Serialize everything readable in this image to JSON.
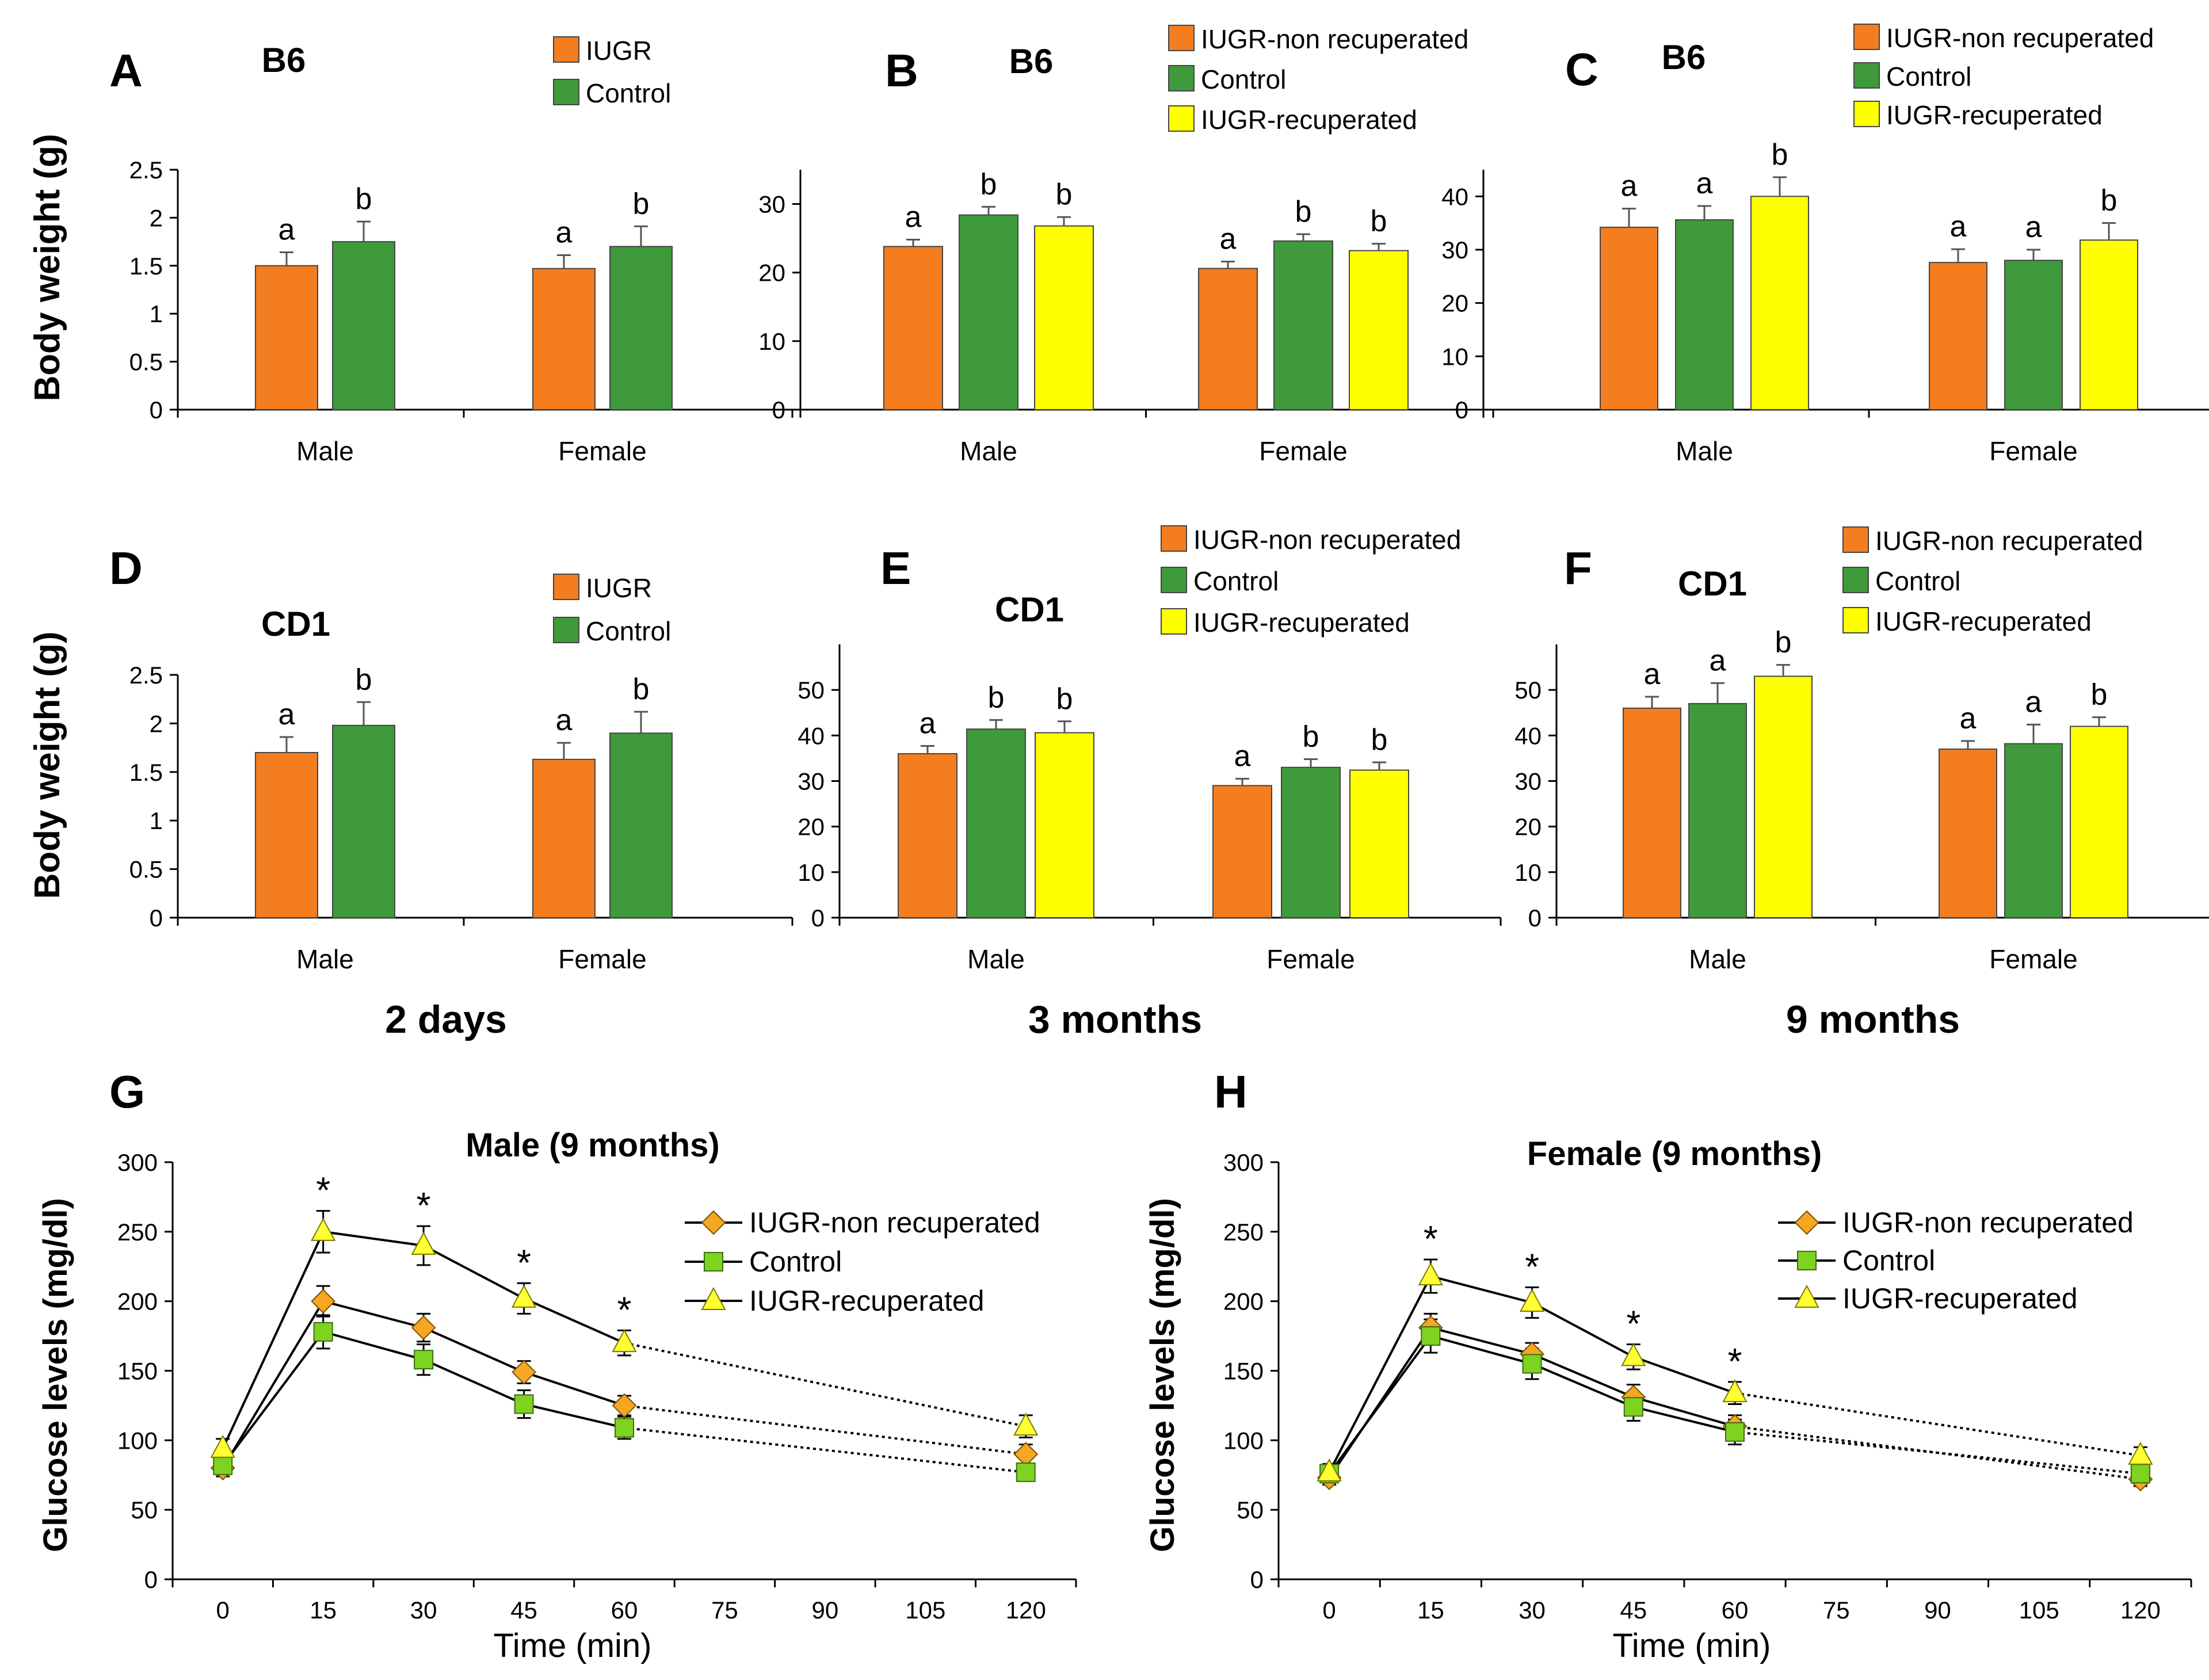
{
  "colors": {
    "IUGR": "#f47d20",
    "IUGR-non recuperated": "#f47d20",
    "Control": "#3e9a3a",
    "IUGR-recuperated": "#ffff00",
    "marker_nonrec": "#f5a623",
    "marker_control": "#7ed321",
    "marker_rec": "#ffff33"
  },
  "row_labels": {
    "body_weight_top": "Body weight (g)",
    "body_weight_bottom": "Body weight (g)",
    "glucose_left": "Glucose levels (mg/dl)",
    "glucose_right": "Glucose levels (mg/dl)"
  },
  "age_labels": [
    "2 days",
    "3 months",
    "9 months"
  ],
  "chart_data": [
    {
      "id": "A",
      "type": "bar",
      "letter": "A",
      "title": "B6",
      "categories": [
        "Male",
        "Female"
      ],
      "ylim": [
        0,
        2.5
      ],
      "yticks": [
        "0",
        "0.5",
        "1",
        "1.5",
        "2",
        "2.5"
      ],
      "ytick_values": [
        0,
        0.5,
        1,
        1.5,
        2,
        2.5
      ],
      "series": [
        {
          "name": "IUGR",
          "values": [
            1.5,
            1.47
          ],
          "errors": [
            0.14,
            0.14
          ],
          "sig": [
            "a",
            "a"
          ]
        },
        {
          "name": "Control",
          "values": [
            1.75,
            1.7
          ],
          "errors": [
            0.21,
            0.21
          ],
          "sig": [
            "b",
            "b"
          ]
        }
      ]
    },
    {
      "id": "B",
      "type": "bar",
      "letter": "B",
      "title": "B6",
      "categories": [
        "Male",
        "Female"
      ],
      "ylim": [
        0,
        35
      ],
      "yticks": [
        "0",
        "10",
        "20",
        "30"
      ],
      "ytick_values": [
        0,
        10,
        20,
        30
      ],
      "series": [
        {
          "name": "IUGR-non recuperated",
          "values": [
            23.8,
            20.6
          ],
          "errors": [
            1.0,
            1.0
          ],
          "sig": [
            "a",
            "a"
          ]
        },
        {
          "name": "Control",
          "values": [
            28.4,
            24.6
          ],
          "errors": [
            1.2,
            1.0
          ],
          "sig": [
            "b",
            "b"
          ]
        },
        {
          "name": "IUGR-recuperated",
          "values": [
            26.8,
            23.2
          ],
          "errors": [
            1.3,
            1.0
          ],
          "sig": [
            "b",
            "b"
          ]
        }
      ]
    },
    {
      "id": "C",
      "type": "bar",
      "letter": "C",
      "title": "B6",
      "categories": [
        "Male",
        "Female"
      ],
      "ylim": [
        0,
        45
      ],
      "yticks": [
        "0",
        "10",
        "20",
        "30",
        "40"
      ],
      "ytick_values": [
        0,
        10,
        20,
        30,
        40
      ],
      "series": [
        {
          "name": "IUGR-non recuperated",
          "values": [
            34.2,
            27.6
          ],
          "errors": [
            3.5,
            2.5
          ],
          "sig": [
            "a",
            "a"
          ]
        },
        {
          "name": "Control",
          "values": [
            35.6,
            28.0
          ],
          "errors": [
            2.6,
            2.0
          ],
          "sig": [
            "a",
            "a"
          ]
        },
        {
          "name": "IUGR-recuperated",
          "values": [
            40.0,
            31.8
          ],
          "errors": [
            3.6,
            3.2
          ],
          "sig": [
            "b",
            "b"
          ]
        }
      ]
    },
    {
      "id": "D",
      "type": "bar",
      "letter": "D",
      "title": "CD1",
      "categories": [
        "Male",
        "Female"
      ],
      "ylim": [
        0,
        2.5
      ],
      "yticks": [
        "0",
        "0.5",
        "1",
        "1.5",
        "2",
        "2.5"
      ],
      "ytick_values": [
        0,
        0.5,
        1,
        1.5,
        2,
        2.5
      ],
      "series": [
        {
          "name": "IUGR",
          "values": [
            1.7,
            1.63
          ],
          "errors": [
            0.16,
            0.17
          ],
          "sig": [
            "a",
            "a"
          ]
        },
        {
          "name": "Control",
          "values": [
            1.98,
            1.9
          ],
          "errors": [
            0.24,
            0.22
          ],
          "sig": [
            "b",
            "b"
          ]
        }
      ]
    },
    {
      "id": "E",
      "type": "bar",
      "letter": "E",
      "title": "CD1",
      "categories": [
        "Male",
        "Female"
      ],
      "ylim": [
        0,
        60
      ],
      "yticks": [
        "0",
        "10",
        "20",
        "30",
        "40",
        "50"
      ],
      "ytick_values": [
        0,
        10,
        20,
        30,
        40,
        50
      ],
      "series": [
        {
          "name": "IUGR-non recuperated",
          "values": [
            36.0,
            29.0
          ],
          "errors": [
            1.7,
            1.5
          ],
          "sig": [
            "a",
            "a"
          ]
        },
        {
          "name": "Control",
          "values": [
            41.4,
            33.0
          ],
          "errors": [
            2.0,
            1.8
          ],
          "sig": [
            "b",
            "b"
          ]
        },
        {
          "name": "IUGR-recuperated",
          "values": [
            40.6,
            32.4
          ],
          "errors": [
            2.5,
            1.7
          ],
          "sig": [
            "b",
            "b"
          ]
        }
      ]
    },
    {
      "id": "F",
      "type": "bar",
      "letter": "F",
      "title": "CD1",
      "categories": [
        "Male",
        "Female"
      ],
      "ylim": [
        0,
        60
      ],
      "yticks": [
        "0",
        "10",
        "20",
        "30",
        "40",
        "50"
      ],
      "ytick_values": [
        0,
        10,
        20,
        30,
        40,
        50
      ],
      "series": [
        {
          "name": "IUGR-non recuperated",
          "values": [
            46.0,
            37.0
          ],
          "errors": [
            2.5,
            1.8
          ],
          "sig": [
            "a",
            "a"
          ]
        },
        {
          "name": "Control",
          "values": [
            47.0,
            38.2
          ],
          "errors": [
            4.5,
            4.2
          ],
          "sig": [
            "a",
            "a"
          ]
        },
        {
          "name": "IUGR-recuperated",
          "values": [
            53.0,
            42.0
          ],
          "errors": [
            2.5,
            2.0
          ],
          "sig": [
            "b",
            "b"
          ]
        }
      ]
    },
    {
      "id": "G",
      "type": "line",
      "letter": "G",
      "title": "Male (9 months)",
      "xlabel": "Time (min)",
      "ylabel": "Glucose levels (mg/dl)",
      "xlim": [
        -7.5,
        127.5
      ],
      "xticks": [
        "0",
        "15",
        "30",
        "45",
        "60",
        "75",
        "90",
        "105",
        "120"
      ],
      "xtick_values": [
        0,
        15,
        30,
        45,
        60,
        75,
        90,
        105,
        120
      ],
      "ylim": [
        0,
        300
      ],
      "yticks": [
        "0",
        "50",
        "100",
        "150",
        "200",
        "250",
        "300"
      ],
      "ytick_values": [
        0,
        50,
        100,
        150,
        200,
        250,
        300
      ],
      "x": [
        0,
        15,
        30,
        45,
        60,
        120
      ],
      "stars": [
        15,
        30,
        45,
        60
      ],
      "series": [
        {
          "name": "IUGR-non recuperated",
          "marker": "diamond",
          "values": [
            80,
            200,
            181,
            149,
            125,
            90
          ],
          "errors": [
            6,
            11,
            10,
            8,
            7,
            7
          ]
        },
        {
          "name": "Control",
          "marker": "square",
          "values": [
            82,
            178,
            158,
            126,
            109,
            77
          ],
          "errors": [
            6,
            12,
            11,
            10,
            8,
            5
          ]
        },
        {
          "name": "IUGR-recuperated",
          "marker": "triangle",
          "values": [
            94,
            250,
            240,
            202,
            170,
            110
          ],
          "errors": [
            7,
            15,
            14,
            11,
            9,
            8
          ]
        }
      ]
    },
    {
      "id": "H",
      "type": "line",
      "letter": "H",
      "title": "Female (9 months)",
      "xlabel": "Time (min)",
      "ylabel": "Glucose levels (mg/dl)",
      "xlim": [
        -7.5,
        127.5
      ],
      "xticks": [
        "0",
        "15",
        "30",
        "45",
        "60",
        "75",
        "90",
        "105",
        "120"
      ],
      "xtick_values": [
        0,
        15,
        30,
        45,
        60,
        75,
        90,
        105,
        120
      ],
      "ylim": [
        0,
        300
      ],
      "yticks": [
        "0",
        "50",
        "100",
        "150",
        "200",
        "250",
        "300"
      ],
      "ytick_values": [
        0,
        50,
        100,
        150,
        200,
        250,
        300
      ],
      "x": [
        0,
        15,
        30,
        45,
        60,
        120
      ],
      "stars": [
        15,
        30,
        45,
        60
      ],
      "series": [
        {
          "name": "IUGR-non recuperated",
          "marker": "diamond",
          "values": [
            73,
            181,
            162,
            131,
            110,
            72
          ],
          "errors": [
            5,
            10,
            8,
            9,
            8,
            5
          ]
        },
        {
          "name": "Control",
          "marker": "square",
          "values": [
            76,
            175,
            155,
            124,
            106,
            76
          ],
          "errors": [
            5,
            12,
            11,
            10,
            9,
            6
          ]
        },
        {
          "name": "IUGR-recuperated",
          "marker": "triangle",
          "values": [
            77,
            218,
            199,
            160,
            134,
            89
          ],
          "errors": [
            6,
            12,
            11,
            9,
            8,
            6
          ]
        }
      ]
    }
  ]
}
